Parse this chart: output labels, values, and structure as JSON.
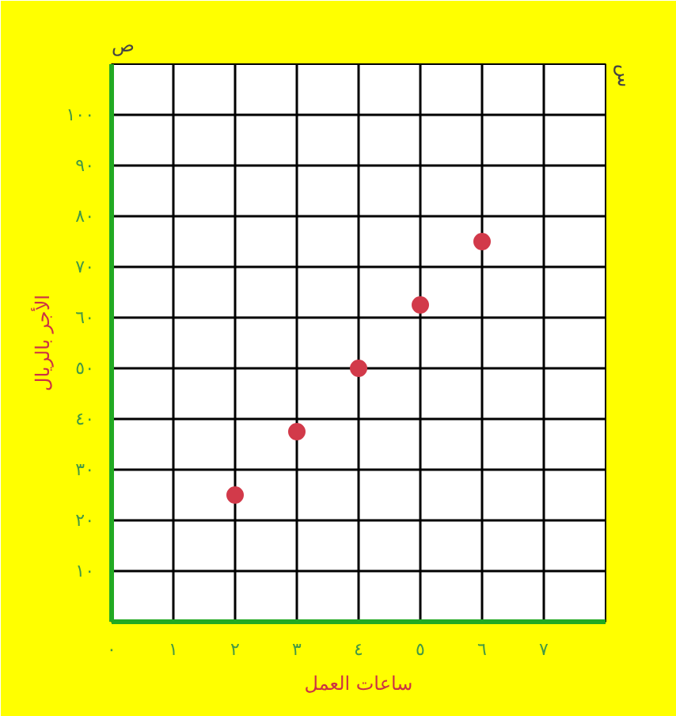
{
  "chart_data": {
    "type": "scatter",
    "xlabel": "ساعات العمل",
    "ylabel": "الأجر بالريال",
    "annotations": [
      "ص",
      "س"
    ],
    "x": [
      2,
      3,
      4,
      5,
      6
    ],
    "series": [
      {
        "color": "#d23a4a",
        "values": [
          25,
          37.5,
          50,
          62.5,
          75
        ]
      }
    ],
    "xlim": [
      0,
      8
    ],
    "ylim": [
      0,
      110
    ],
    "xticks": [
      {
        "value": 0,
        "label": "٠"
      },
      {
        "value": 1,
        "label": "١"
      },
      {
        "value": 2,
        "label": "٢"
      },
      {
        "value": 3,
        "label": "٣"
      },
      {
        "value": 4,
        "label": "٤"
      },
      {
        "value": 5,
        "label": "٥"
      },
      {
        "value": 6,
        "label": "٦"
      },
      {
        "value": 7,
        "label": "٧"
      },
      {
        "value": 8,
        "label": null
      }
    ],
    "yticks": [
      {
        "value": 10,
        "label": "١٠"
      },
      {
        "value": 20,
        "label": "٢٠"
      },
      {
        "value": 30,
        "label": "٣٠"
      },
      {
        "value": 40,
        "label": "٤٠"
      },
      {
        "value": 50,
        "label": "٥٠"
      },
      {
        "value": 60,
        "label": "٦٠"
      },
      {
        "value": 70,
        "label": "٧٠"
      },
      {
        "value": 80,
        "label": "٨٠"
      },
      {
        "value": 90,
        "label": "٩٠"
      },
      {
        "value": 100,
        "label": "١٠٠"
      },
      {
        "value": 110,
        "label": null
      }
    ],
    "grid": true,
    "marker": "circle"
  }
}
